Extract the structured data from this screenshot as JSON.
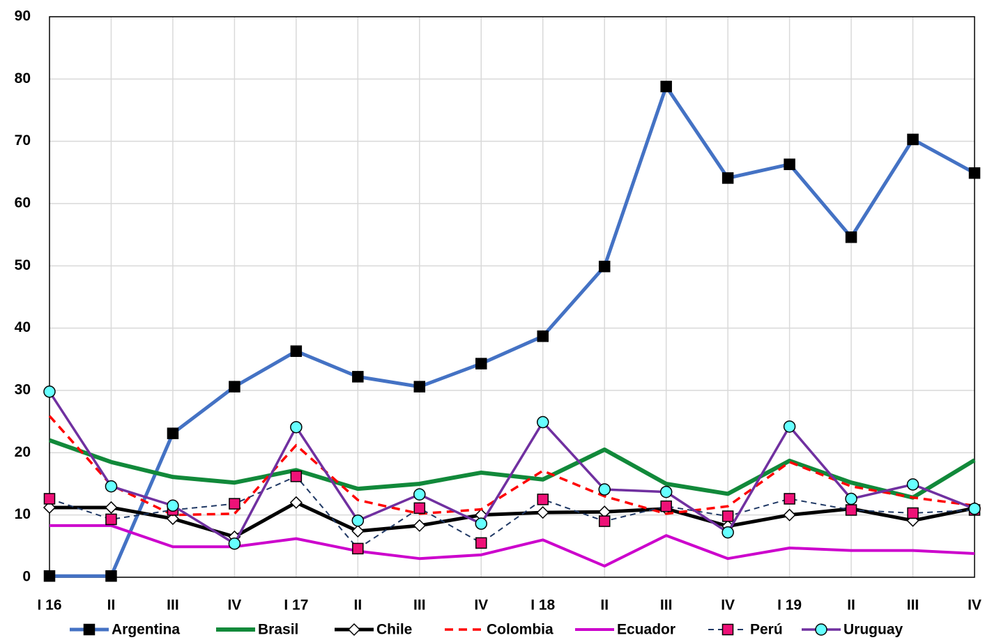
{
  "chart_data": {
    "type": "line",
    "categories": [
      "I 16",
      "II",
      "III",
      "IV",
      "I 17",
      "II",
      "III",
      "IV",
      "I 18",
      "II",
      "III",
      "IV",
      "I 19",
      "II",
      "III",
      "IV"
    ],
    "series": [
      {
        "name": "Argentina",
        "color": "#4472c4",
        "width": 5,
        "marker": "square",
        "marker_fill": "#000000",
        "values": [
          0.2,
          0.2,
          23.1,
          30.6,
          36.3,
          32.2,
          30.6,
          34.3,
          38.7,
          49.9,
          78.8,
          64.1,
          66.3,
          54.6,
          70.3,
          64.9
        ]
      },
      {
        "name": "Brasil",
        "color": "#11893a",
        "width": 6,
        "values": [
          22,
          18.5,
          16.1,
          15.2,
          17.2,
          14.2,
          15,
          16.8,
          15.7,
          20.5,
          15,
          13.4,
          18.7,
          15.2,
          12.8,
          18.8
        ]
      },
      {
        "name": "Chile",
        "color": "#000000",
        "width": 5,
        "marker": "diamond",
        "marker_fill": "#ffffff",
        "values": [
          11.2,
          11.2,
          9.4,
          6.5,
          12,
          7.4,
          8.3,
          10,
          10.4,
          10.5,
          11,
          8.2,
          10,
          11,
          9.1,
          11.1
        ]
      },
      {
        "name": "Colombia",
        "color": "#ff0000",
        "width": 3.5,
        "dash": "12 8",
        "values": [
          25.9,
          14.8,
          10,
          10.2,
          21.2,
          12.4,
          10.2,
          10.9,
          17.1,
          13,
          10.2,
          11.4,
          18.5,
          14.6,
          12.8,
          11.5
        ]
      },
      {
        "name": "Ecuador",
        "color": "#cc00cc",
        "width": 4,
        "values": [
          8.3,
          8.3,
          4.9,
          4.9,
          6.2,
          4.2,
          3,
          3.6,
          6,
          1.8,
          6.7,
          3,
          4.7,
          4.3,
          4.3,
          3.8
        ]
      },
      {
        "name": "Perú",
        "color": "#1f3864",
        "width": 2,
        "dash": "8 6",
        "marker": "square",
        "marker_fill": "#ee1177",
        "values": [
          12.6,
          9.3,
          10.8,
          11.8,
          16.2,
          4.6,
          11.1,
          5.5,
          12.5,
          9,
          11.4,
          9.8,
          12.6,
          10.8,
          10.3,
          10.8
        ]
      },
      {
        "name": "Uruguay",
        "color": "#7030a0",
        "width": 3.5,
        "marker": "circle",
        "marker_fill": "#66ffff",
        "values": [
          29.8,
          14.6,
          11.5,
          5.4,
          24.1,
          9.1,
          13.3,
          8.6,
          24.9,
          14.1,
          13.7,
          7.2,
          24.2,
          12.6,
          14.9,
          11
        ]
      }
    ],
    "ylim": [
      0,
      90
    ],
    "yticks": [
      0,
      10,
      20,
      30,
      40,
      50,
      60,
      70,
      80,
      90
    ],
    "grid": true,
    "legend": "bottom"
  }
}
